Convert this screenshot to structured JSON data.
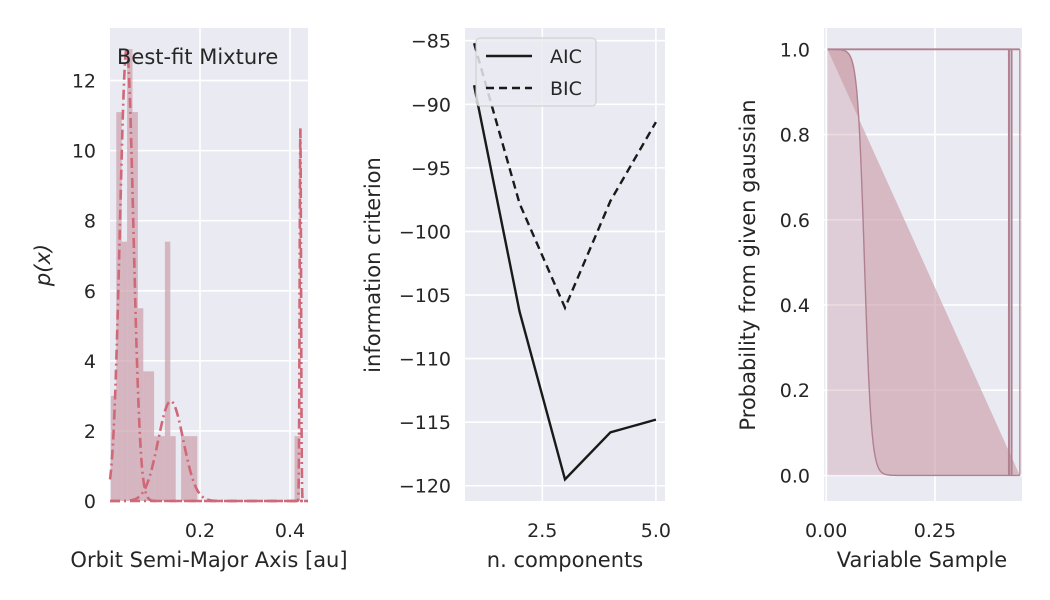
{
  "chart_data": [
    {
      "type": "histogram+line",
      "annotation": "Best-fit Mixture",
      "xlabel": "Orbit Semi-Major Axis [au]",
      "ylabel_math": "p(x)",
      "xlim": [
        0.0,
        0.44
      ],
      "ylim": [
        0,
        13.5
      ],
      "x_ticks": [
        "0.2",
        "0.4"
      ],
      "x_tick_values": [
        0.2,
        0.4
      ],
      "y_ticks": [
        "0",
        "2",
        "4",
        "6",
        "8",
        "10",
        "12"
      ],
      "y_tick_values": [
        0,
        2,
        4,
        6,
        8,
        10,
        12
      ],
      "histogram": [
        {
          "x0": 0.002,
          "x1": 0.014,
          "value": 3.0
        },
        {
          "x0": 0.014,
          "x1": 0.026,
          "value": 11.1
        },
        {
          "x0": 0.026,
          "x1": 0.038,
          "value": 7.4
        },
        {
          "x0": 0.038,
          "x1": 0.05,
          "value": 12.9
        },
        {
          "x0": 0.05,
          "x1": 0.062,
          "value": 11.1
        },
        {
          "x0": 0.062,
          "x1": 0.074,
          "value": 5.5
        },
        {
          "x0": 0.074,
          "x1": 0.086,
          "value": 3.7
        },
        {
          "x0": 0.086,
          "x1": 0.098,
          "value": 3.7
        },
        {
          "x0": 0.098,
          "x1": 0.11,
          "value": 1.85
        },
        {
          "x0": 0.11,
          "x1": 0.122,
          "value": 1.85
        },
        {
          "x0": 0.122,
          "x1": 0.134,
          "value": 7.4
        },
        {
          "x0": 0.134,
          "x1": 0.146,
          "value": 1.85
        },
        {
          "x0": 0.158,
          "x1": 0.17,
          "value": 1.85
        },
        {
          "x0": 0.17,
          "x1": 0.182,
          "value": 1.85
        },
        {
          "x0": 0.182,
          "x1": 0.194,
          "value": 1.85
        },
        {
          "x0": 0.41,
          "x1": 0.422,
          "value": 1.85
        }
      ],
      "components": [
        {
          "mu": 0.037,
          "sigma": 0.015,
          "weight": 0.485
        },
        {
          "mu": 0.135,
          "sigma": 0.028,
          "weight": 0.2
        },
        {
          "mu": 0.423,
          "sigma": 0.0015,
          "weight": 0.04
        }
      ],
      "colors": {
        "bars": "#c898a4",
        "line": "#d06878",
        "bg": "#eaeaf2",
        "grid": "#ffffff"
      }
    },
    {
      "type": "line",
      "xlabel": "n. components",
      "ylabel": "information criterion",
      "xlim": [
        0.8,
        5.2
      ],
      "ylim": [
        -121.2,
        -84.0
      ],
      "x_ticks": [
        "2.5",
        "5.0"
      ],
      "x_tick_values": [
        2.5,
        5.0
      ],
      "y_ticks": [
        "−85",
        "−90",
        "−95",
        "−100",
        "−105",
        "−110",
        "−115",
        "−120"
      ],
      "y_tick_values": [
        -85,
        -90,
        -95,
        -100,
        -105,
        -110,
        -115,
        -120
      ],
      "x": [
        1,
        2,
        3,
        4,
        5
      ],
      "series": [
        {
          "name": "AIC",
          "values": [
            -88.5,
            -106.3,
            -119.5,
            -115.8,
            -114.8
          ],
          "style": "solid"
        },
        {
          "name": "BIC",
          "values": [
            -85.2,
            -97.8,
            -106.0,
            -97.6,
            -91.4
          ],
          "style": "dashed"
        }
      ],
      "legend_position": "top-left",
      "colors": {
        "line": "#1a1a1a",
        "bg": "#eaeaf2",
        "grid": "#ffffff"
      }
    },
    {
      "type": "area",
      "xlabel": "Variable Sample",
      "ylabel": "Probability from given gaussian",
      "xlim": [
        -0.005,
        0.45
      ],
      "ylim": [
        -0.06,
        1.05
      ],
      "x_ticks": [
        "0.00",
        "0.25"
      ],
      "x_tick_values": [
        0.0,
        0.25
      ],
      "y_ticks": [
        "0.0",
        "0.2",
        "0.4",
        "0.6",
        "0.8",
        "1.0"
      ],
      "y_tick_values": [
        0.0,
        0.2,
        0.4,
        0.6,
        0.8,
        1.0
      ],
      "x_range": [
        0.003,
        0.445
      ],
      "transition": {
        "center": 0.088,
        "width": 0.008
      },
      "spike": {
        "x0": 0.42,
        "x1": 0.426
      },
      "colors": {
        "fill": "#c898a4",
        "edge": "#b08090",
        "bg": "#eaeaf2",
        "grid": "#ffffff"
      }
    }
  ]
}
